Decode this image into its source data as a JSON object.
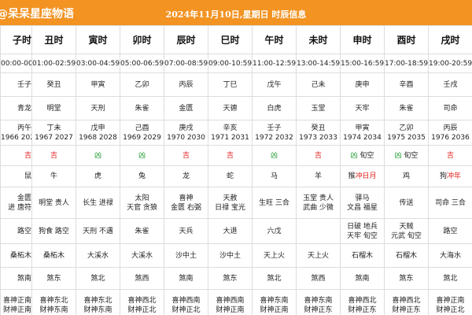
{
  "header": {
    "brand": "@呆呆星座物语",
    "title": "2024年11月10日,星期日 时辰信息"
  },
  "table": {
    "columns": [
      "子时",
      "丑时",
      "寅时",
      "卯时",
      "辰时",
      "巳时",
      "午时",
      "未时",
      "申时",
      "酉时",
      "戌时"
    ],
    "rows": [
      [
        [
          "00:00-00:59"
        ],
        [
          "01:00-02:59"
        ],
        [
          "03:00-04:59"
        ],
        [
          "05:00-06:59"
        ],
        [
          "07:00-08:59"
        ],
        [
          "09:00-10:59"
        ],
        [
          "11:00-12:59"
        ],
        [
          "13:00-14:59"
        ],
        [
          "15:00-16:59"
        ],
        [
          "17:00-18:59"
        ],
        [
          "19:00-20:59"
        ]
      ],
      [
        [
          "壬子"
        ],
        [
          "癸丑"
        ],
        [
          "甲寅"
        ],
        [
          "乙卯"
        ],
        [
          "丙辰"
        ],
        [
          "丁巳"
        ],
        [
          "戊午"
        ],
        [
          "己未"
        ],
        [
          "庚申"
        ],
        [
          "辛酉"
        ],
        [
          "壬戌"
        ]
      ],
      [
        [
          "青龙"
        ],
        [
          "明堂"
        ],
        [
          "天刑"
        ],
        [
          "朱雀"
        ],
        [
          "金匮"
        ],
        [
          "天德"
        ],
        [
          "白虎"
        ],
        [
          "玉堂"
        ],
        [
          "天牢"
        ],
        [
          "朱雀"
        ],
        [
          "司命"
        ]
      ],
      [
        [
          "丙午",
          "1966 2026"
        ],
        [
          "丁未",
          "1967 2027"
        ],
        [
          "戊申",
          "1968 2028"
        ],
        [
          "己酉",
          "1969 2029"
        ],
        [
          "庚戌",
          "1970 2030"
        ],
        [
          "辛亥",
          "1971 2031"
        ],
        [
          "壬子",
          "1972 2032"
        ],
        [
          "癸丑",
          "1973 2033"
        ],
        [
          "甲寅",
          "1974 2034"
        ],
        [
          "乙卯",
          "1975 2035"
        ],
        [
          "丙辰",
          "1976 2036"
        ]
      ],
      [
        [
          {
            "text": "吉",
            "color": "#e0201c"
          }
        ],
        [
          {
            "text": "吉",
            "color": "#e0201c"
          }
        ],
        [
          {
            "text": "凶",
            "color": "#1a9a2a"
          }
        ],
        [
          {
            "text": "凶",
            "color": "#1a9a2a"
          }
        ],
        [
          {
            "text": "吉",
            "color": "#e0201c"
          }
        ],
        [
          {
            "text": "吉",
            "color": "#e0201c"
          }
        ],
        [
          {
            "text": "凶",
            "color": "#1a9a2a"
          }
        ],
        [
          {
            "text": "吉",
            "color": "#e0201c"
          }
        ],
        [
          [
            {
              "text": "凶",
              "color": "#1a9a2a"
            },
            " 旬空"
          ]
        ],
        [
          [
            {
              "text": "凶",
              "color": "#1a9a2a"
            },
            " 旬空"
          ]
        ],
        [
          {
            "text": "吉",
            "color": "#e0201c"
          }
        ]
      ],
      [
        [
          "鼠"
        ],
        [
          "牛"
        ],
        [
          "虎"
        ],
        [
          "兔"
        ],
        [
          "龙"
        ],
        [
          "蛇"
        ],
        [
          "马"
        ],
        [
          "羊"
        ],
        [
          [
            "猴",
            {
              "text": "冲日月",
              "color": "#e0201c"
            }
          ]
        ],
        [
          "鸡"
        ],
        [
          [
            "狗",
            {
              "text": "冲年",
              "color": "#e0201c"
            }
          ]
        ]
      ],
      [
        [
          "金匮",
          "进 唐符"
        ],
        [
          "明堂 贵人"
        ],
        [
          "长生 进禄"
        ],
        [
          "太阳",
          "天官 贪狼"
        ],
        [
          "喜神",
          "金匮 右弼"
        ],
        [
          "天赦",
          "日禄 宝光"
        ],
        [
          "生旺 三合"
        ],
        [
          "玉堂 贵人",
          "武曲 少微"
        ],
        [
          "驿马",
          "文昌 福星"
        ],
        [
          "传送"
        ],
        [
          "司命 三合"
        ]
      ],
      [
        [
          "路空"
        ],
        [
          "狗食 路空"
        ],
        [
          "天刑 不遇"
        ],
        [
          "朱雀"
        ],
        [
          "天兵"
        ],
        [
          "大退"
        ],
        [
          "六戊"
        ],
        [],
        [
          "日破 地兵",
          "天牢 旬空"
        ],
        [
          "天贼",
          "元武 旬空"
        ],
        [
          "路空"
        ]
      ],
      [
        [
          "桑柘木"
        ],
        [
          "桑柘木"
        ],
        [
          "大溪水"
        ],
        [
          "大溪水"
        ],
        [
          "沙中土"
        ],
        [
          "沙中土"
        ],
        [
          "天上火"
        ],
        [
          "天上火"
        ],
        [
          "石榴木"
        ],
        [
          "石榴木"
        ],
        [
          "大海水"
        ]
      ],
      [
        [
          "煞南"
        ],
        [
          "煞东"
        ],
        [
          "煞北"
        ],
        [
          "煞西"
        ],
        [
          "煞南"
        ],
        [
          "煞东"
        ],
        [
          "煞北"
        ],
        [
          "煞西"
        ],
        [
          "煞南"
        ],
        [
          "煞东"
        ],
        [
          "煞北"
        ]
      ],
      [
        [
          "喜神正南",
          "财神正南"
        ],
        [
          "喜神东北",
          "财神东南"
        ],
        [
          "喜神东北",
          "财神东南"
        ],
        [
          "喜神西北",
          "财神正北"
        ],
        [
          "喜神西南",
          "财神正北"
        ],
        [
          "喜神西南",
          "财神正南"
        ],
        [
          "喜神东南",
          "财神正南"
        ],
        [
          "喜神东南",
          "财神正东"
        ],
        [
          "喜神西北",
          "财神正东"
        ],
        [
          "喜神西北",
          "财神正东"
        ],
        [
          "喜神正南",
          "财神正北"
        ]
      ]
    ]
  }
}
